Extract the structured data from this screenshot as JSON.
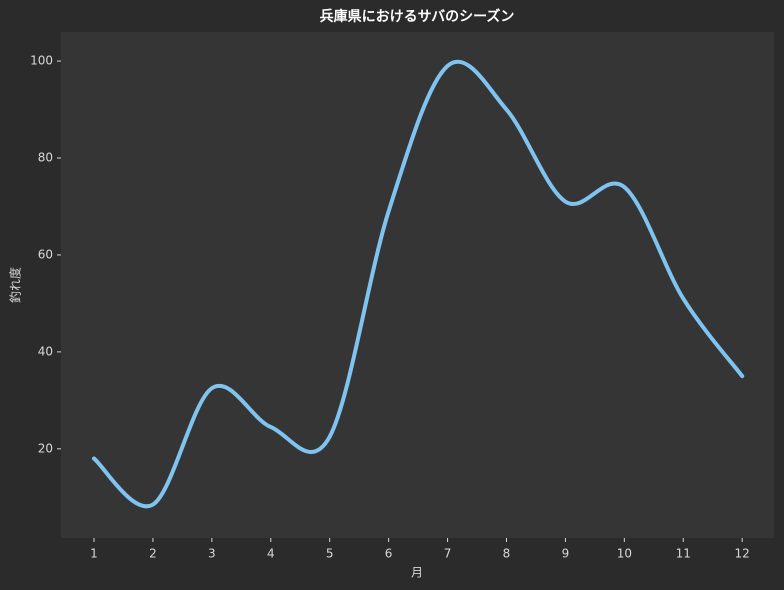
{
  "chart_data": {
    "type": "line",
    "title": "兵庫県におけるサバのシーズン",
    "x_label": "月",
    "y_label": "釣れ度",
    "x": [
      1,
      2,
      3,
      4,
      5,
      6,
      7,
      8,
      9,
      10,
      11,
      12
    ],
    "values": [
      18,
      8.5,
      32.5,
      24.5,
      22.5,
      69,
      99,
      90,
      71,
      74,
      51,
      35
    ],
    "color": "#7fc4f0",
    "xlim": [
      0.44,
      12.54
    ],
    "xticks": [
      1,
      2,
      3,
      4,
      5,
      6,
      7,
      8,
      9,
      10,
      11,
      12
    ],
    "ylim": [
      1.6,
      106
    ],
    "yticks": [
      20,
      40,
      60,
      80,
      100
    ],
    "grid": false
  }
}
